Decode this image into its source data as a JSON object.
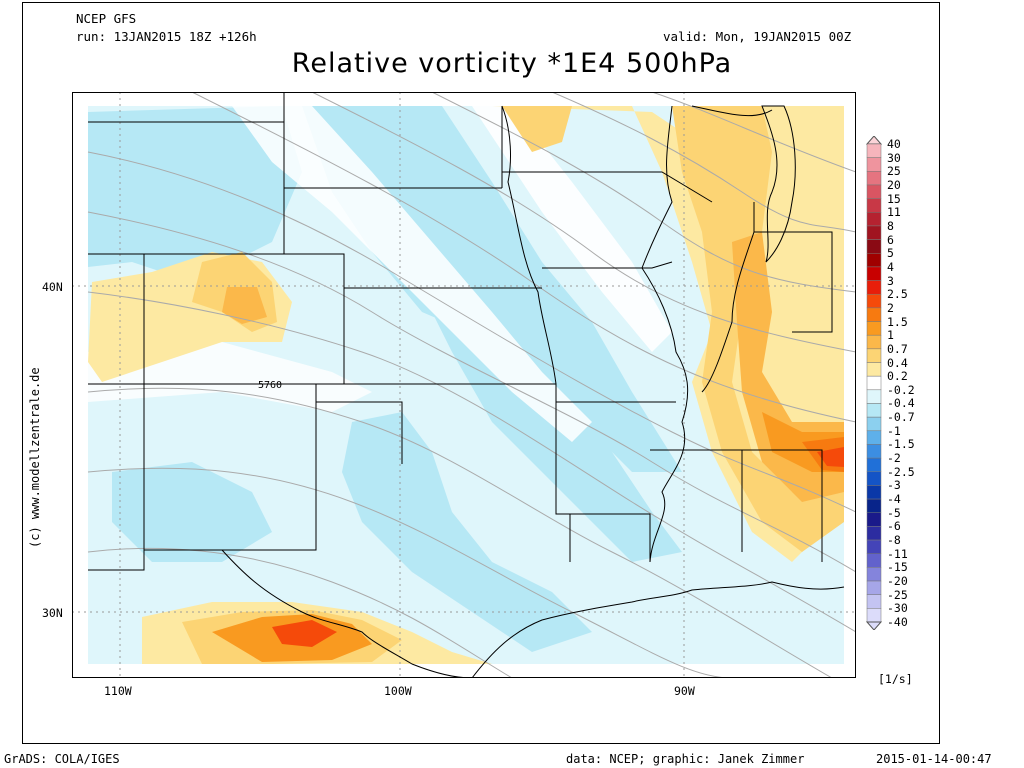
{
  "header": {
    "model": "NCEP GFS",
    "run": "run: 13JAN2015 18Z +126h",
    "valid": "valid: Mon, 19JAN2015 00Z",
    "title": "Relative vorticity *1E4 500hPa"
  },
  "map": {
    "lat_labels": [
      "40N",
      "30N"
    ],
    "lon_labels": [
      "110W",
      "100W",
      "90W"
    ],
    "contour_label": "5760",
    "credit": "(c) www.modellzentrale.de",
    "colors": {
      "land_outline": "#000000",
      "graticule": "#9a9a9a",
      "height_contours": "#aaaaaa"
    }
  },
  "colorbar": {
    "unit": "[1/s]",
    "levels": [
      {
        "label": "40",
        "color": "#fbd4d8"
      },
      {
        "label": "30",
        "color": "#f6b5bc"
      },
      {
        "label": "25",
        "color": "#ef949e"
      },
      {
        "label": "20",
        "color": "#e57480"
      },
      {
        "label": "15",
        "color": "#d95562"
      },
      {
        "label": "11",
        "color": "#c83846"
      },
      {
        "label": "8",
        "color": "#b52230"
      },
      {
        "label": "6",
        "color": "#a01420"
      },
      {
        "label": "5",
        "color": "#8a0a14"
      },
      {
        "label": "4",
        "color": "#a00000"
      },
      {
        "label": "3",
        "color": "#c80000"
      },
      {
        "label": "2.5",
        "color": "#e81e0a"
      },
      {
        "label": "2",
        "color": "#f54a0a"
      },
      {
        "label": "1.5",
        "color": "#f77a10"
      },
      {
        "label": "1",
        "color": "#f99a20"
      },
      {
        "label": "0.7",
        "color": "#fbb84a"
      },
      {
        "label": "0.4",
        "color": "#fcd474"
      },
      {
        "label": "0.2",
        "color": "#fde9a2"
      },
      {
        "label": "-0.2",
        "color": "#ffffff"
      },
      {
        "label": "-0.4",
        "color": "#dff6fb"
      },
      {
        "label": "-0.7",
        "color": "#b6e8f5"
      },
      {
        "label": "-1",
        "color": "#8cd0ef"
      },
      {
        "label": "-1.5",
        "color": "#5eb0ea"
      },
      {
        "label": "-2",
        "color": "#3c8ee2"
      },
      {
        "label": "-2.5",
        "color": "#2070d8"
      },
      {
        "label": "-3",
        "color": "#1454c6"
      },
      {
        "label": "-4",
        "color": "#0a38a8"
      },
      {
        "label": "-5",
        "color": "#08248a"
      },
      {
        "label": "-6",
        "color": "#1a1a8a"
      },
      {
        "label": "-8",
        "color": "#2c2ca0"
      },
      {
        "label": "-11",
        "color": "#4444b8"
      },
      {
        "label": "-15",
        "color": "#6262cc"
      },
      {
        "label": "-20",
        "color": "#8484dc"
      },
      {
        "label": "-25",
        "color": "#a6a6e8"
      },
      {
        "label": "-30",
        "color": "#c4c4f2"
      },
      {
        "label": "-40",
        "color": "#dcdcfa"
      }
    ]
  },
  "footer": {
    "software": "GrADS: COLA/IGES",
    "data_credit": "data: NCEP; graphic: Janek Zimmer",
    "timestamp": "2015-01-14-00:47"
  }
}
